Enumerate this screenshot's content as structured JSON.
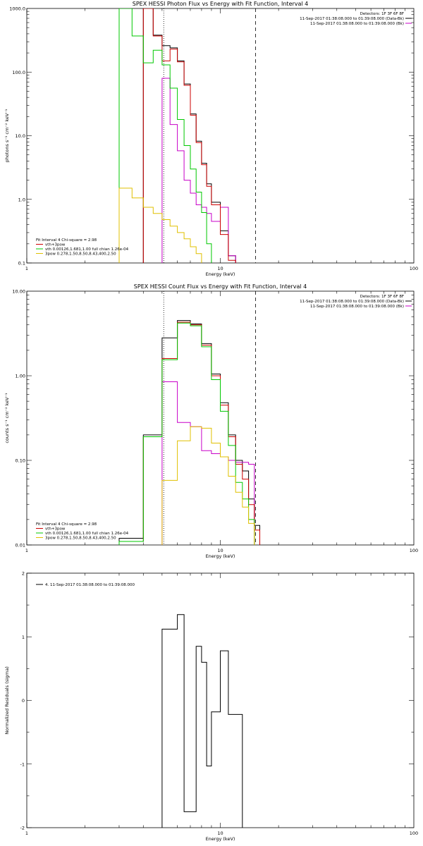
{
  "chart_data": [
    {
      "type": "line",
      "title": "SPEX HESSI Photon Flux vs Energy with Fit Function, Interval 4",
      "xlabel": "Energy (keV)",
      "ylabel": "photons s⁻¹ cm⁻² keV⁻¹",
      "xscale": "log",
      "yscale": "log",
      "xlim": [
        1,
        100
      ],
      "ylim": [
        0.1,
        1000
      ],
      "xticks": [
        "1",
        "10",
        "100"
      ],
      "yticks": [
        "0.1",
        "1.0",
        "10.0",
        "100.0",
        "1000.0"
      ],
      "vlines": [
        {
          "x": 5.1,
          "style": "dotted"
        },
        {
          "x": 15.2,
          "style": "dashed"
        }
      ],
      "info_lines": [
        "Detectors: 1F 3F 6F 8F",
        "11-Sep-2017 01:38:08.000 to 01:39:08.000 (Data-Bk)",
        "11-Sep-2017 01:38:08.000 to 01:39:08.000 (Bk)"
      ],
      "legend_text": [
        "Fit Interval 4   Chi-square = 2.98",
        "vth+3pow",
        "vth 0.00126,1.681,1.00  full chian 1.26e-04",
        "3pow 0.278,1.50,8.50,8.43,400,2.50"
      ],
      "edges": [
        3,
        3.5,
        4,
        4.5,
        5,
        5.5,
        6,
        6.5,
        7,
        7.5,
        8,
        8.5,
        9,
        10,
        11,
        12,
        13,
        14,
        15,
        16,
        17
      ],
      "series": [
        {
          "name": "Data-Bk",
          "color": "#000000",
          "values": [
            null,
            null,
            1000,
            380,
            260,
            240,
            150,
            65,
            22,
            8.2,
            3.7,
            1.75,
            0.9,
            0.32,
            0.13,
            null,
            null,
            null,
            null,
            null
          ]
        },
        {
          "name": "Bk",
          "color": "#c800c8",
          "values": [
            null,
            null,
            null,
            null,
            80,
            15,
            5.8,
            2.0,
            1.25,
            0.82,
            0.75,
            0.6,
            0.45,
            0.75,
            0.13,
            null,
            null,
            null,
            null,
            null
          ]
        },
        {
          "name": "vth+3pow",
          "color": "#cc0000",
          "values": [
            null,
            null,
            1000,
            370,
            150,
            230,
            145,
            62,
            21,
            7.8,
            3.5,
            1.6,
            0.82,
            0.28,
            0.11,
            null,
            null,
            null,
            null,
            null
          ]
        },
        {
          "name": "vth",
          "color": "#00c800",
          "values": [
            1000,
            370,
            140,
            220,
            130,
            56,
            18,
            7.0,
            3.0,
            1.3,
            0.62,
            0.2,
            null,
            null,
            null,
            null,
            null,
            null,
            null,
            null
          ]
        },
        {
          "name": "3pow",
          "color": "#e0c000",
          "values": [
            1.5,
            1.05,
            0.75,
            0.6,
            0.48,
            0.38,
            0.3,
            0.24,
            0.18,
            0.14,
            null,
            null,
            null,
            null,
            null,
            null,
            null,
            null,
            null,
            null
          ]
        }
      ]
    },
    {
      "type": "line",
      "title": "SPEX HESSI Count Flux vs Energy with Fit Function, Interval 4",
      "xlabel": "Energy (keV)",
      "ylabel": "counts s⁻¹ cm⁻² keV⁻¹",
      "xscale": "log",
      "yscale": "log",
      "xlim": [
        1,
        100
      ],
      "ylim": [
        0.01,
        10
      ],
      "xticks": [
        "1",
        "10",
        "100"
      ],
      "yticks": [
        "0.01",
        "0.10",
        "1.00",
        "10.00"
      ],
      "vlines": [
        {
          "x": 5.1,
          "style": "dotted"
        },
        {
          "x": 15.2,
          "style": "dashed"
        }
      ],
      "info_lines": [
        "Detectors: 1F 3F 6F 8F",
        "11-Sep-2017 01:38:08.000 to 01:39:08.000 (Data-Bk)",
        "11-Sep-2017 01:38:08.000 to 01:39:08.000 (Bk)"
      ],
      "legend_text": [
        "Fit Interval 4   Chi-square = 2.98",
        "vth+3pow",
        "vth 0.00126,1.681,1.00  full chian 1.26e-04",
        "3pow 0.278,1.50,8.50,8.43,400,2.50"
      ],
      "edges": [
        3,
        4,
        5,
        6,
        7,
        8,
        9,
        10,
        11,
        12,
        13,
        14,
        15,
        16,
        17
      ],
      "series": [
        {
          "name": "Data-Bk",
          "color": "#000000",
          "values": [
            0.012,
            0.2,
            2.8,
            4.5,
            4.1,
            2.4,
            1.05,
            0.48,
            0.2,
            0.1,
            0.075,
            0.035,
            0.017,
            null
          ]
        },
        {
          "name": "Bk",
          "color": "#c800c8",
          "values": [
            null,
            null,
            0.85,
            0.28,
            0.25,
            0.13,
            0.12,
            0.11,
            0.1,
            0.095,
            0.095,
            0.09,
            null,
            null
          ]
        },
        {
          "name": "vth+3pow",
          "color": "#cc0000",
          "values": [
            0.011,
            0.19,
            1.6,
            4.3,
            4.0,
            2.3,
            1.0,
            0.45,
            0.19,
            0.09,
            0.06,
            0.03,
            0.015,
            null
          ]
        },
        {
          "name": "vth",
          "color": "#00c800",
          "values": [
            0.011,
            0.19,
            1.55,
            4.2,
            3.9,
            2.2,
            0.9,
            0.38,
            0.15,
            0.055,
            0.035,
            0.02,
            null,
            null
          ]
        },
        {
          "name": "3pow",
          "color": "#e0c000",
          "values": [
            null,
            null,
            0.058,
            0.17,
            0.25,
            0.24,
            0.16,
            0.11,
            0.065,
            0.042,
            0.028,
            0.018,
            null,
            null
          ]
        }
      ]
    },
    {
      "type": "line",
      "title": "",
      "xlabel": "Energy (keV)",
      "ylabel": "Normalized Residuals (sigma)",
      "xscale": "log",
      "yscale": "linear",
      "xlim": [
        1,
        100
      ],
      "ylim": [
        -2,
        2
      ],
      "xticks": [
        "1",
        "10",
        "100"
      ],
      "yticks": [
        "-2",
        "-1",
        "0",
        "1",
        "2"
      ],
      "legend_text": [
        "4. 11-Sep-2017 01:38:08.000 to 01:39:08.000"
      ],
      "edges": [
        5,
        5.5,
        6,
        6.5,
        7,
        7.5,
        8,
        8.5,
        9,
        10,
        11,
        12,
        13,
        14,
        15
      ],
      "series": [
        {
          "name": "4. 11-Sep-2017 01:38:08.000 to 01:39:08.000",
          "color": "#000000",
          "values": [
            1.12,
            1.12,
            1.35,
            -1.75,
            -1.75,
            0.85,
            0.6,
            -1.03,
            -0.18,
            0.78,
            -0.22,
            -0.22,
            null,
            null
          ]
        }
      ]
    }
  ]
}
